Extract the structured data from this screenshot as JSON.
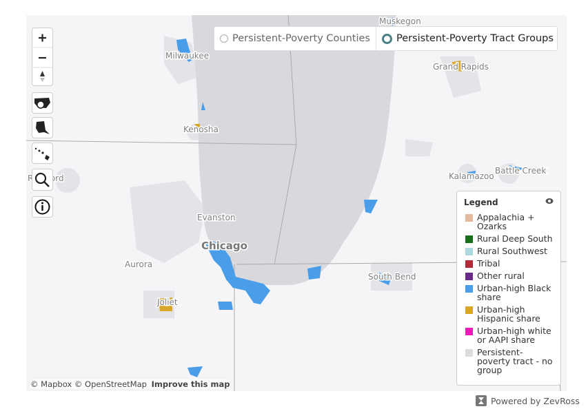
{
  "toggle": {
    "options": [
      "Persistent-Poverty Counties",
      "Persistent-Poverty Tract Groups"
    ],
    "selected": 1
  },
  "map_labels": [
    "Milwaukee",
    "Kenosha",
    "Rockford",
    "Evanston",
    "Chicago",
    "Aurora",
    "Joliet",
    "Muskegon",
    "Grand Rapids",
    "Kalamazoo",
    "Battle Creek",
    "South Bend"
  ],
  "legend": {
    "title": "Legend",
    "items": [
      {
        "label": "Appalachia + Ozarks",
        "color": "#e6b89c"
      },
      {
        "label": "Rural Deep South",
        "color": "#1a6e1a"
      },
      {
        "label": "Rural Southwest",
        "color": "#acd9df"
      },
      {
        "label": "Tribal",
        "color": "#b22a3a"
      },
      {
        "label": "Other rural",
        "color": "#6a2a8a"
      },
      {
        "label": "Urban-high Black share",
        "color": "#4a9de8"
      },
      {
        "label": "Urban-high Hispanic share",
        "color": "#d8a72a"
      },
      {
        "label": "Urban-high white or AAPI share",
        "color": "#e81cb8"
      },
      {
        "label": "Persistent-poverty tract - no group",
        "color": "#dcdcdc"
      }
    ]
  },
  "attribution": {
    "mapbox": "© Mapbox",
    "osm": "© OpenStreetMap",
    "improve": "Improve this map"
  },
  "footer": "Powered by ZevRoss"
}
